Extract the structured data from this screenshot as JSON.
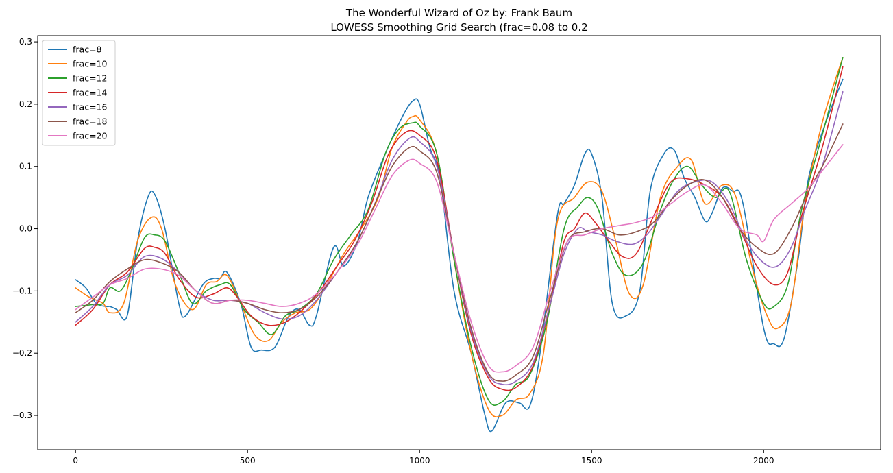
{
  "chart_data": {
    "type": "line",
    "title": "The Wonderful Wizard of Oz by: Frank Baum",
    "subtitle": "LOWESS Smoothing Grid Search (frac=0.08 to 0.2",
    "xlabel": "",
    "ylabel": "",
    "xlim": [
      -110,
      2340
    ],
    "ylim": [
      -0.355,
      0.31
    ],
    "xticks": [
      0,
      500,
      1000,
      1500,
      2000
    ],
    "xtick_labels": [
      "0",
      "500",
      "1000",
      "1500",
      "2000"
    ],
    "yticks": [
      -0.3,
      -0.2,
      -0.1,
      0.0,
      0.1,
      0.2,
      0.3
    ],
    "ytick_labels": [
      "−0.3",
      "−0.2",
      "−0.1",
      "0.0",
      "0.1",
      "0.2",
      "0.3"
    ],
    "grid": false,
    "legend_position": "top-left",
    "series": [
      {
        "name": "frac=8",
        "color": "#1f77b4",
        "x": [
          0,
          30,
          60,
          90,
          100,
          120,
          150,
          180,
          210,
          230,
          260,
          300,
          320,
          370,
          400,
          420,
          440,
          480,
          510,
          540,
          580,
          620,
          650,
          680,
          700,
          750,
          780,
          820,
          850,
          900,
          950,
          980,
          1000,
          1030,
          1060,
          1100,
          1150,
          1190,
          1210,
          1250,
          1290,
          1320,
          1350,
          1400,
          1420,
          1450,
          1480,
          1500,
          1530,
          1560,
          1600,
          1640,
          1670,
          1710,
          1740,
          1770,
          1800,
          1830,
          1850,
          1880,
          1910,
          1940,
          2000,
          2030,
          2060,
          2100,
          2130,
          2180,
          2230
        ],
        "y": [
          -0.082,
          -0.095,
          -0.12,
          -0.125,
          -0.125,
          -0.13,
          -0.14,
          -0.02,
          0.05,
          0.055,
          0.0,
          -0.12,
          -0.14,
          -0.09,
          -0.08,
          -0.08,
          -0.07,
          -0.12,
          -0.19,
          -0.195,
          -0.19,
          -0.14,
          -0.13,
          -0.155,
          -0.14,
          -0.03,
          -0.06,
          -0.02,
          0.05,
          0.12,
          0.18,
          0.205,
          0.2,
          0.13,
          0.08,
          -0.1,
          -0.2,
          -0.3,
          -0.325,
          -0.28,
          -0.28,
          -0.285,
          -0.2,
          0.02,
          0.04,
          0.07,
          0.12,
          0.12,
          0.05,
          -0.12,
          -0.14,
          -0.1,
          0.06,
          0.12,
          0.126,
          0.08,
          0.05,
          0.012,
          0.025,
          0.065,
          0.06,
          0.04,
          -0.16,
          -0.185,
          -0.175,
          -0.05,
          0.08,
          0.17,
          0.24
        ]
      },
      {
        "name": "frac=10",
        "color": "#ff7f0e",
        "x": [
          0,
          40,
          80,
          100,
          140,
          180,
          220,
          250,
          290,
          340,
          380,
          410,
          440,
          480,
          520,
          560,
          600,
          640,
          680,
          720,
          780,
          830,
          880,
          920,
          960,
          980,
          1000,
          1050,
          1100,
          1150,
          1200,
          1240,
          1280,
          1320,
          1360,
          1400,
          1450,
          1490,
          1530,
          1570,
          1610,
          1650,
          1700,
          1750,
          1790,
          1830,
          1880,
          1920,
          1970,
          2010,
          2040,
          2080,
          2120,
          2170,
          2230
        ],
        "y": [
          -0.095,
          -0.11,
          -0.12,
          -0.135,
          -0.12,
          -0.02,
          0.018,
          0.0,
          -0.09,
          -0.13,
          -0.09,
          -0.085,
          -0.075,
          -0.12,
          -0.17,
          -0.18,
          -0.15,
          -0.135,
          -0.13,
          -0.1,
          -0.04,
          0.0,
          0.05,
          0.13,
          0.17,
          0.18,
          0.175,
          0.12,
          -0.05,
          -0.2,
          -0.29,
          -0.3,
          -0.275,
          -0.265,
          -0.2,
          0.01,
          0.05,
          0.075,
          0.06,
          -0.02,
          -0.105,
          -0.09,
          0.05,
          0.1,
          0.11,
          0.04,
          0.07,
          0.05,
          -0.07,
          -0.14,
          -0.16,
          -0.12,
          0.04,
          0.17,
          0.275
        ]
      },
      {
        "name": "frac=12",
        "color": "#2ca02c",
        "x": [
          0,
          50,
          80,
          100,
          130,
          160,
          200,
          230,
          260,
          300,
          340,
          380,
          420,
          450,
          490,
          530,
          570,
          610,
          650,
          700,
          750,
          800,
          850,
          900,
          940,
          980,
          1000,
          1050,
          1100,
          1150,
          1200,
          1240,
          1280,
          1320,
          1370,
          1420,
          1460,
          1490,
          1520,
          1560,
          1600,
          1650,
          1700,
          1740,
          1780,
          1820,
          1860,
          1900,
          1950,
          2000,
          2030,
          2070,
          2110,
          2170,
          2230
        ],
        "y": [
          -0.125,
          -0.122,
          -0.12,
          -0.095,
          -0.1,
          -0.07,
          -0.015,
          -0.01,
          -0.02,
          -0.07,
          -0.12,
          -0.1,
          -0.09,
          -0.09,
          -0.13,
          -0.15,
          -0.17,
          -0.14,
          -0.13,
          -0.105,
          -0.05,
          -0.01,
          0.03,
          0.12,
          0.16,
          0.17,
          0.165,
          0.12,
          -0.05,
          -0.19,
          -0.275,
          -0.278,
          -0.25,
          -0.235,
          -0.15,
          0.0,
          0.035,
          0.05,
          0.03,
          -0.04,
          -0.075,
          -0.055,
          0.03,
          0.08,
          0.1,
          0.07,
          0.05,
          0.06,
          -0.05,
          -0.12,
          -0.125,
          -0.09,
          0.03,
          0.15,
          0.275
        ]
      },
      {
        "name": "frac=14",
        "color": "#d62728",
        "x": [
          0,
          50,
          100,
          150,
          200,
          230,
          260,
          300,
          350,
          400,
          440,
          470,
          510,
          560,
          610,
          660,
          710,
          760,
          810,
          860,
          910,
          960,
          1000,
          1050,
          1100,
          1150,
          1200,
          1240,
          1280,
          1330,
          1380,
          1420,
          1450,
          1480,
          1510,
          1550,
          1590,
          1630,
          1680,
          1730,
          1780,
          1830,
          1880,
          1930,
          1980,
          2030,
          2070,
          2110,
          2170,
          2230
        ],
        "y": [
          -0.155,
          -0.13,
          -0.09,
          -0.07,
          -0.032,
          -0.03,
          -0.04,
          -0.08,
          -0.11,
          -0.105,
          -0.095,
          -0.11,
          -0.14,
          -0.155,
          -0.15,
          -0.13,
          -0.1,
          -0.06,
          -0.02,
          0.04,
          0.12,
          0.155,
          0.15,
          0.11,
          -0.04,
          -0.17,
          -0.24,
          -0.258,
          -0.255,
          -0.22,
          -0.12,
          -0.02,
          0.0,
          0.025,
          0.01,
          -0.02,
          -0.045,
          -0.04,
          0.02,
          0.075,
          0.08,
          0.07,
          0.05,
          0.0,
          -0.06,
          -0.09,
          -0.07,
          0.02,
          0.13,
          0.26
        ]
      },
      {
        "name": "frac=16",
        "color": "#9467bd",
        "x": [
          0,
          50,
          100,
          150,
          200,
          250,
          300,
          350,
          400,
          450,
          500,
          550,
          600,
          650,
          700,
          760,
          820,
          870,
          920,
          970,
          1000,
          1050,
          1100,
          1150,
          1200,
          1240,
          1280,
          1330,
          1380,
          1420,
          1460,
          1490,
          1530,
          1570,
          1620,
          1660,
          1700,
          1750,
          1800,
          1850,
          1900,
          1950,
          2000,
          2040,
          2080,
          2120,
          2170,
          2230
        ],
        "y": [
          -0.15,
          -0.125,
          -0.09,
          -0.075,
          -0.045,
          -0.048,
          -0.07,
          -0.1,
          -0.115,
          -0.115,
          -0.12,
          -0.135,
          -0.145,
          -0.14,
          -0.115,
          -0.07,
          -0.02,
          0.04,
          0.11,
          0.145,
          0.14,
          0.1,
          -0.04,
          -0.165,
          -0.235,
          -0.25,
          -0.245,
          -0.215,
          -0.12,
          -0.04,
          0.0,
          -0.005,
          -0.01,
          -0.02,
          -0.025,
          -0.01,
          0.02,
          0.06,
          0.075,
          0.075,
          0.04,
          -0.02,
          -0.055,
          -0.06,
          -0.03,
          0.03,
          0.1,
          0.22
        ]
      },
      {
        "name": "frac=18",
        "color": "#8c564b",
        "x": [
          0,
          50,
          100,
          150,
          200,
          250,
          300,
          350,
          400,
          450,
          500,
          550,
          600,
          650,
          700,
          760,
          820,
          870,
          920,
          970,
          1000,
          1050,
          1100,
          1150,
          1200,
          1240,
          1280,
          1330,
          1380,
          1430,
          1480,
          1530,
          1580,
          1630,
          1680,
          1730,
          1780,
          1830,
          1880,
          1930,
          1980,
          2030,
          2080,
          2130,
          2180,
          2230
        ],
        "y": [
          -0.135,
          -0.115,
          -0.085,
          -0.065,
          -0.05,
          -0.055,
          -0.07,
          -0.1,
          -0.12,
          -0.115,
          -0.12,
          -0.13,
          -0.135,
          -0.13,
          -0.11,
          -0.07,
          -0.02,
          0.04,
          0.1,
          0.13,
          0.125,
          0.09,
          -0.04,
          -0.16,
          -0.232,
          -0.245,
          -0.235,
          -0.205,
          -0.11,
          -0.02,
          -0.005,
          0.0,
          -0.01,
          -0.005,
          0.01,
          0.045,
          0.07,
          0.078,
          0.05,
          0.0,
          -0.03,
          -0.04,
          0.0,
          0.06,
          0.11,
          0.168
        ]
      },
      {
        "name": "frac=20",
        "color": "#e377c2",
        "x": [
          0,
          50,
          100,
          150,
          200,
          250,
          300,
          350,
          400,
          450,
          500,
          550,
          600,
          650,
          700,
          760,
          820,
          870,
          920,
          970,
          1000,
          1050,
          1100,
          1150,
          1200,
          1240,
          1280,
          1330,
          1380,
          1430,
          1480,
          1530,
          1580,
          1630,
          1680,
          1730,
          1780,
          1830,
          1880,
          1930,
          1980,
          2000,
          2030,
          2080,
          2130,
          2180,
          2230
        ],
        "y": [
          -0.13,
          -0.11,
          -0.09,
          -0.08,
          -0.065,
          -0.065,
          -0.075,
          -0.1,
          -0.12,
          -0.115,
          -0.115,
          -0.12,
          -0.125,
          -0.12,
          -0.105,
          -0.07,
          -0.025,
          0.03,
          0.085,
          0.11,
          0.105,
          0.075,
          -0.04,
          -0.15,
          -0.22,
          -0.23,
          -0.22,
          -0.19,
          -0.1,
          -0.02,
          -0.01,
          0.0,
          0.005,
          0.01,
          0.02,
          0.04,
          0.06,
          0.07,
          0.04,
          0.0,
          -0.01,
          -0.02,
          0.015,
          0.04,
          0.065,
          0.1,
          0.135
        ]
      }
    ]
  }
}
